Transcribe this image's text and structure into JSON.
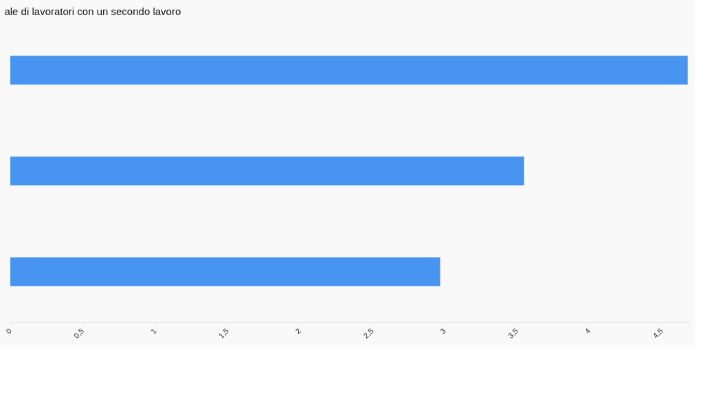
{
  "chart_data": {
    "type": "bar",
    "orientation": "horizontal",
    "title": "ale di lavoratori con un secondo lavoro",
    "categories": [
      null,
      null,
      null
    ],
    "series": [
      {
        "color": "#4795f0",
        "values": [
          4.68,
          3.55,
          2.97
        ]
      }
    ],
    "xlim": [
      0,
      4.7
    ],
    "xticks": [
      0,
      {
        "value": 0.5,
        "label": "0,5"
      },
      1,
      {
        "value": 1.5,
        "label": "1,5"
      },
      2,
      {
        "value": 2.5,
        "label": "2,5"
      },
      3,
      {
        "value": 3.5,
        "label": "3,5"
      },
      4,
      {
        "value": 4.5,
        "label": "4,5"
      }
    ],
    "tick_labels": "x",
    "grid": false
  }
}
